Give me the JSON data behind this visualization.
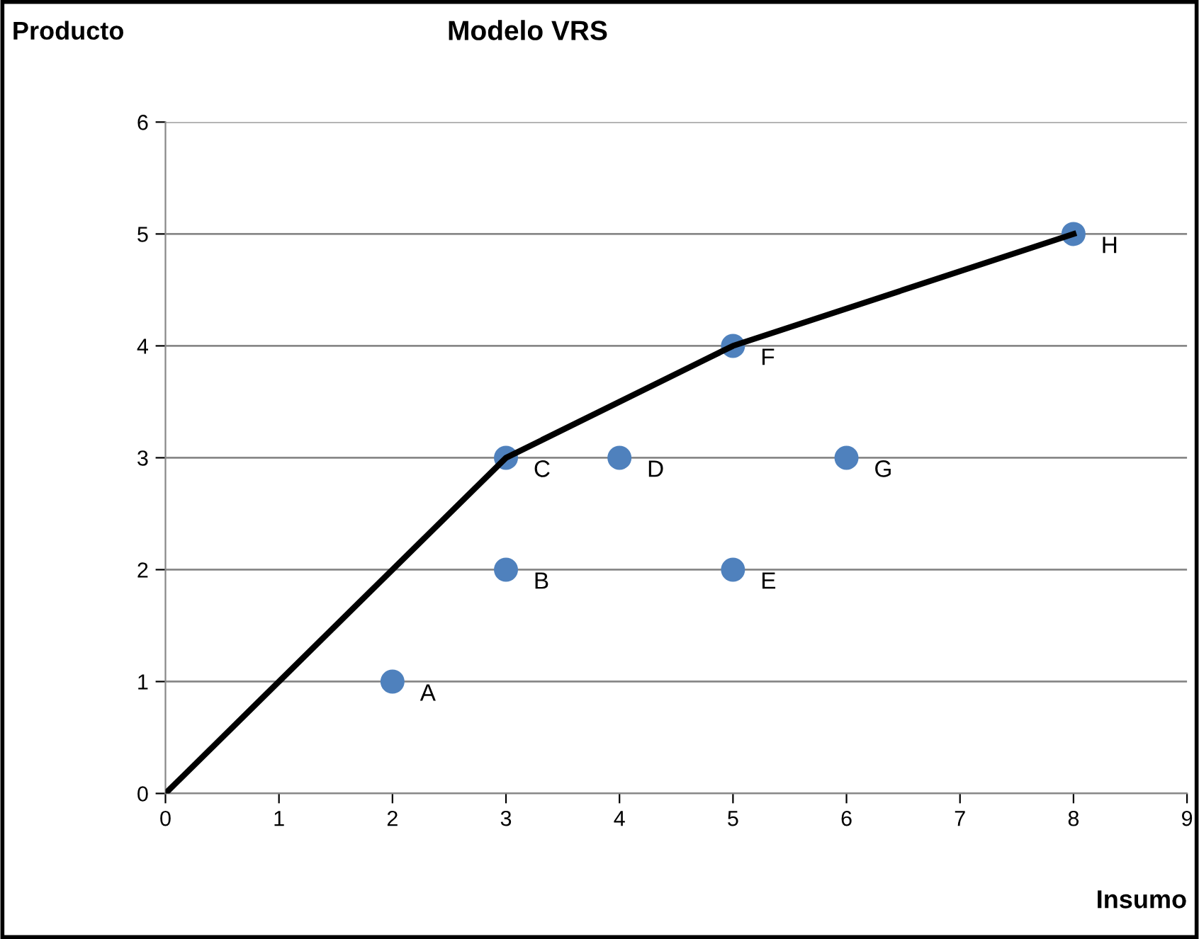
{
  "chart_data": {
    "type": "scatter",
    "title": "Modelo VRS",
    "xlabel": "Insumo",
    "ylabel": "Producto",
    "xlim": [
      0,
      9
    ],
    "ylim": [
      0,
      6
    ],
    "xticks": [
      0,
      1,
      2,
      3,
      4,
      5,
      6,
      7,
      8,
      9
    ],
    "yticks": [
      0,
      1,
      2,
      3,
      4,
      5,
      6
    ],
    "grid": "y",
    "series": [
      {
        "color": "#4f81bd",
        "marker": "circle",
        "x": [
          2,
          3,
          3,
          4,
          5,
          5,
          6,
          8
        ],
        "values": [
          1,
          2,
          3,
          3,
          2,
          4,
          3,
          5
        ]
      },
      {
        "type": "line",
        "color": "#000000",
        "marker": "none",
        "line_style": "solid",
        "x": [
          0,
          3,
          5,
          8
        ],
        "values": [
          0,
          3,
          4,
          5
        ]
      }
    ],
    "annotations": [
      {
        "text": "A",
        "x": 2,
        "y": 1
      },
      {
        "text": "B",
        "x": 3,
        "y": 2
      },
      {
        "text": "C",
        "x": 3,
        "y": 3
      },
      {
        "text": "D",
        "x": 4,
        "y": 3
      },
      {
        "text": "E",
        "x": 5,
        "y": 2
      },
      {
        "text": "F",
        "x": 5,
        "y": 4
      },
      {
        "text": "G",
        "x": 6,
        "y": 3
      },
      {
        "text": "H",
        "x": 8,
        "y": 5
      }
    ]
  }
}
